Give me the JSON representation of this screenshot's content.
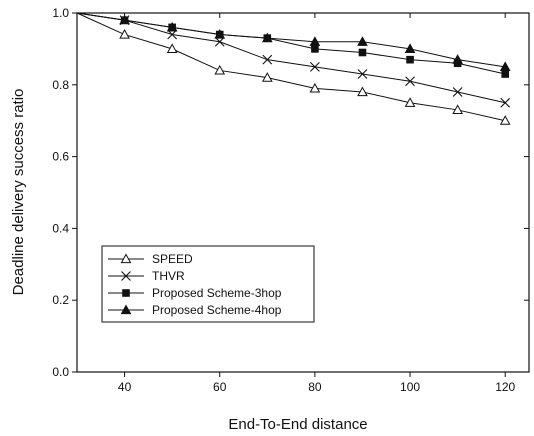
{
  "chart_data": {
    "type": "line",
    "xlabel": "End-To-End distance",
    "ylabel": "Deadline delivery success ratio",
    "xlim": [
      30,
      125
    ],
    "ylim": [
      0,
      1.0
    ],
    "x_ticks": [
      40,
      60,
      80,
      100,
      120
    ],
    "y_ticks": [
      0.0,
      0.2,
      0.4,
      0.6,
      0.8,
      1.0
    ],
    "x_tick_labels": [
      "40",
      "60",
      "80",
      "100",
      "120"
    ],
    "y_tick_labels": [
      "0.0",
      "0.2",
      "0.4",
      "0.6",
      "0.8",
      "1.0"
    ],
    "grid": false,
    "legend_position": "lower-left",
    "x": [
      30,
      40,
      50,
      60,
      70,
      80,
      90,
      100,
      110,
      120
    ],
    "series": [
      {
        "name": "SPEED",
        "marker": "open-triangle",
        "values": [
          1.0,
          0.94,
          0.9,
          0.84,
          0.82,
          0.79,
          0.78,
          0.75,
          0.73,
          0.7
        ]
      },
      {
        "name": "THVR",
        "marker": "x",
        "values": [
          1.0,
          0.98,
          0.94,
          0.92,
          0.87,
          0.85,
          0.83,
          0.81,
          0.78,
          0.75
        ]
      },
      {
        "name": "Proposed Scheme-3hop",
        "marker": "filled-square",
        "values": [
          1.0,
          0.98,
          0.96,
          0.94,
          0.93,
          0.9,
          0.89,
          0.87,
          0.86,
          0.83
        ]
      },
      {
        "name": "Proposed Scheme-4hop",
        "marker": "filled-triangle",
        "values": [
          1.0,
          0.98,
          0.96,
          0.94,
          0.93,
          0.92,
          0.92,
          0.9,
          0.87,
          0.85
        ]
      }
    ]
  }
}
